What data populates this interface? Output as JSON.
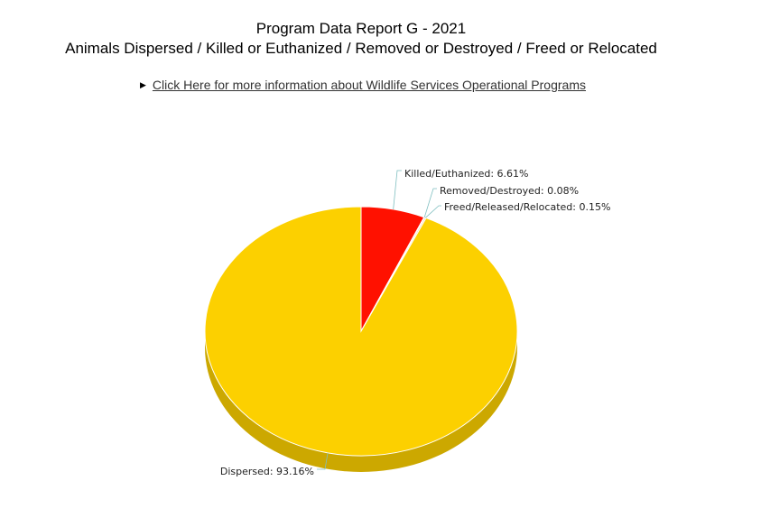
{
  "header": {
    "title": "Program Data Report G - 2021",
    "subtitle": "Animals Dispersed / Killed or Euthanized / Removed or Destroyed / Freed or Relocated",
    "info_link": "Click Here for more information about Wildlife Services Operational Programs"
  },
  "chart_data": {
    "type": "pie",
    "style": "3d",
    "slices": [
      {
        "label": "Killed/Euthanized: 6.61%",
        "name": "Killed/Euthanized",
        "value": 6.61,
        "color": "#ff1100",
        "side_color": "#b30c00"
      },
      {
        "label": "Removed/Destroyed: 0.08%",
        "name": "Removed/Destroyed",
        "value": 0.08,
        "color": "#e8e8e8",
        "side_color": "#b0b0b0"
      },
      {
        "label": "Freed/Released/Relocated: 0.15%",
        "name": "Freed/Released/Relocated",
        "value": 0.15,
        "color": "#f0c080",
        "side_color": "#c09050"
      },
      {
        "label": "Dispersed: 93.16%",
        "name": "Dispersed",
        "value": 93.16,
        "color": "#fcd000",
        "side_color": "#cca800"
      }
    ]
  }
}
